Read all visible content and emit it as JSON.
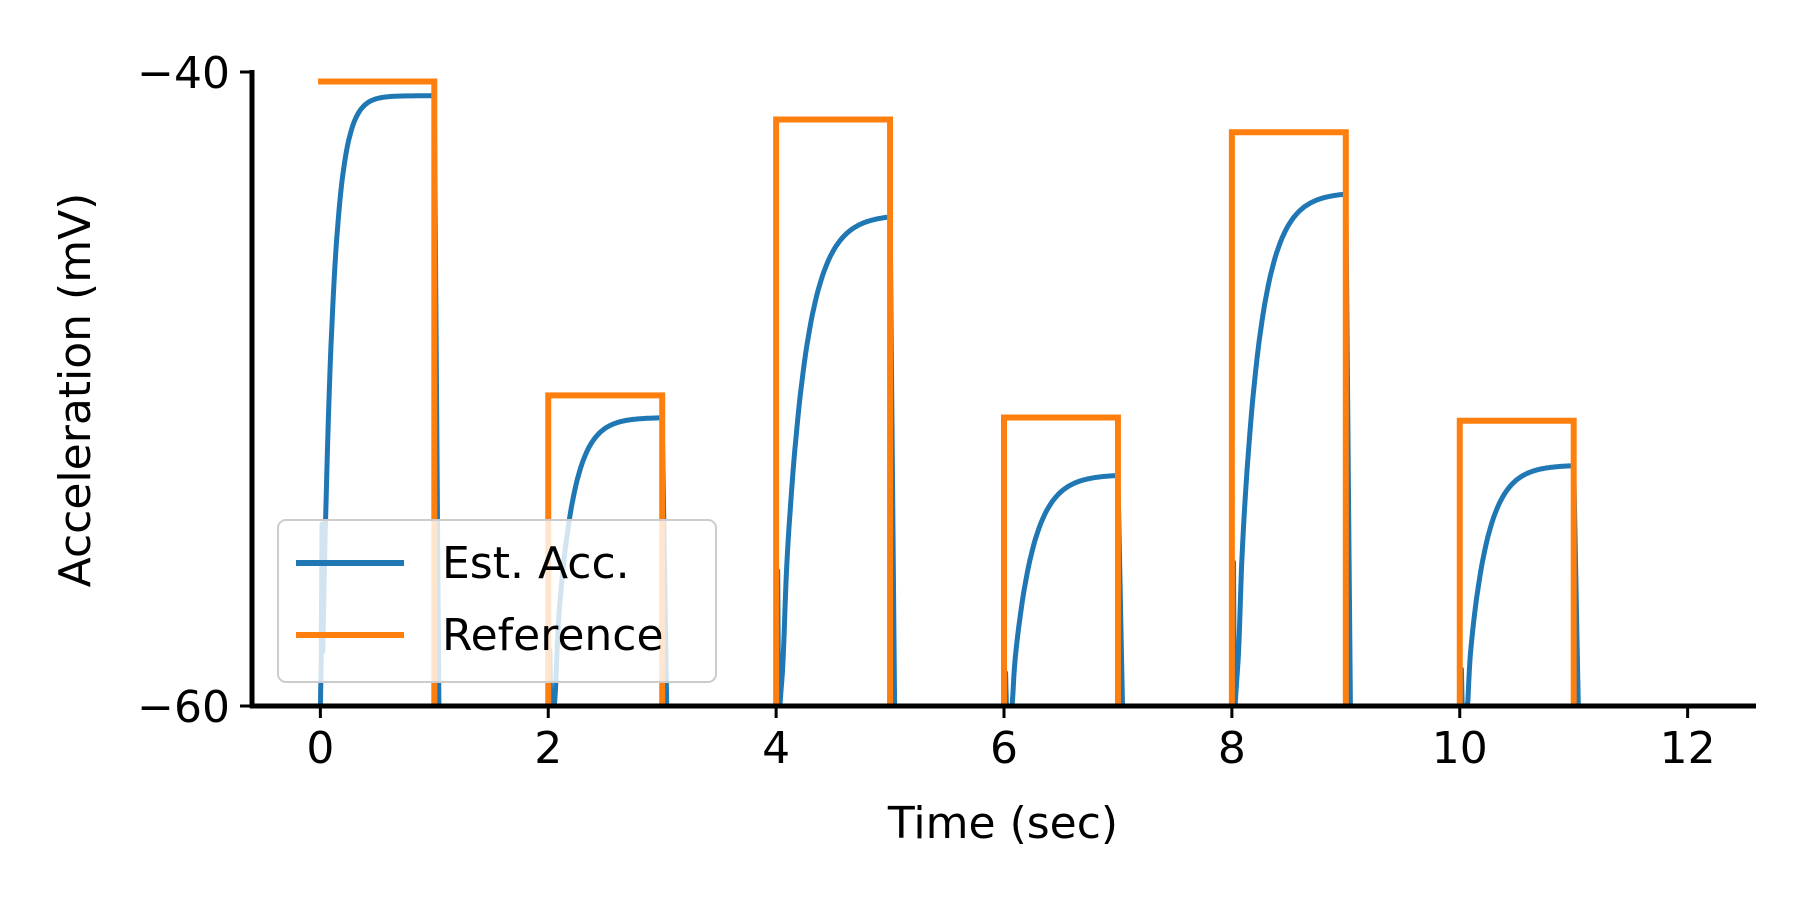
{
  "chart_data": {
    "type": "line",
    "xlabel": "Time (sec)",
    "ylabel": "Acceleration (mV)",
    "xlim": [
      -0.6,
      12.6
    ],
    "ylim": [
      -60,
      -40
    ],
    "x_ticks": [
      0,
      2,
      4,
      6,
      8,
      10,
      12
    ],
    "x_tick_labels": [
      "0",
      "2",
      "4",
      "6",
      "8",
      "10",
      "12"
    ],
    "y_ticks": [
      -60,
      -40
    ],
    "y_tick_labels": [
      "−60",
      "−40"
    ],
    "grid": false,
    "legend_position": "lower-left",
    "pulses": [
      {
        "start": 0,
        "end": 1,
        "reference": -40.3,
        "estimate_final": -40.75,
        "rise_tau": 0.09,
        "has_dip": false
      },
      {
        "start": 2,
        "end": 3,
        "reference": -50.2,
        "estimate_final": -50.9,
        "rise_tau": 0.14,
        "has_dip": true
      },
      {
        "start": 4,
        "end": 5,
        "reference": -41.5,
        "estimate_final": -44.5,
        "rise_tau": 0.18,
        "has_dip": true
      },
      {
        "start": 6,
        "end": 7,
        "reference": -50.9,
        "estimate_final": -52.7,
        "rise_tau": 0.17,
        "has_dip": true
      },
      {
        "start": 8,
        "end": 9,
        "reference": -41.9,
        "estimate_final": -43.8,
        "rise_tau": 0.17,
        "has_dip": true
      },
      {
        "start": 10,
        "end": 11,
        "reference": -51.0,
        "estimate_final": -52.4,
        "rise_tau": 0.16,
        "has_dip": true
      }
    ],
    "series": [
      {
        "name": "Est. Acc.",
        "color": "#1f77b4"
      },
      {
        "name": "Reference",
        "color": "#ff7f0e"
      }
    ]
  }
}
